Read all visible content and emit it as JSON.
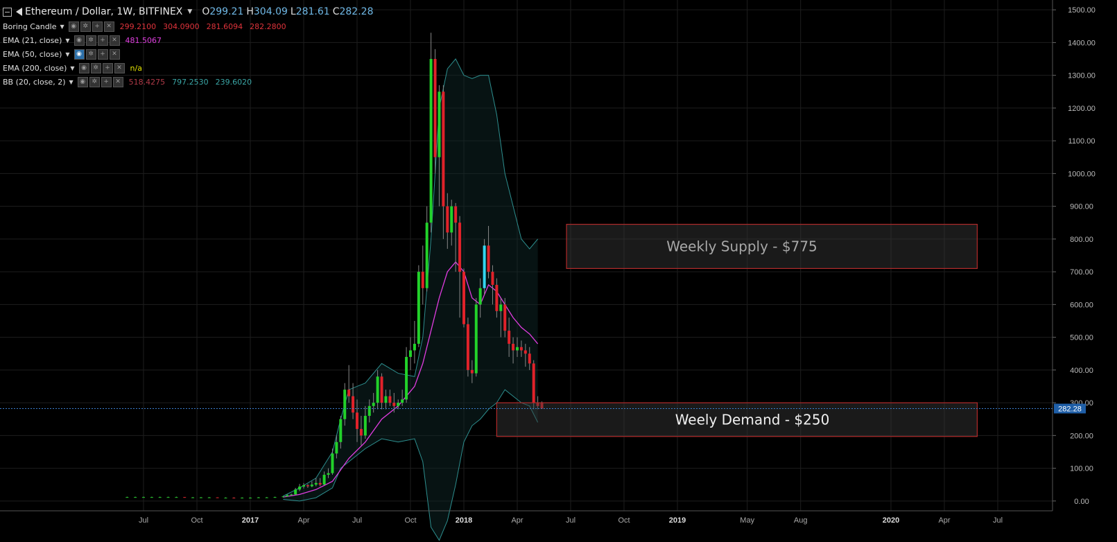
{
  "header": {
    "title": "Ethereum / Dollar, 1W, BITFINEX",
    "ohlc": [
      {
        "k": "O",
        "v": "299.21"
      },
      {
        "k": "H",
        "v": "304.09"
      },
      {
        "k": "L",
        "v": "281.61"
      },
      {
        "k": "C",
        "v": "282.28"
      }
    ]
  },
  "indicators": [
    {
      "name": "Boring Candle",
      "values": [
        "299.2100",
        "304.0900",
        "281.6094",
        "282.2800"
      ],
      "colors": [
        "#e0333b",
        "#e0333b",
        "#e0333b",
        "#e0333b"
      ]
    },
    {
      "name": "EMA (21, close)",
      "values": [
        "481.5067"
      ],
      "colors": [
        "#e040e0"
      ]
    },
    {
      "name": "EMA (50, close)",
      "values": [],
      "colors": [],
      "active": true
    },
    {
      "name": "EMA (200, close)",
      "values": [
        "n/a"
      ],
      "colors": [
        "#e6e600"
      ]
    },
    {
      "name": "BB (20, close, 2)",
      "values": [
        "518.4275",
        "797.2530",
        "239.6020"
      ],
      "colors": [
        "#b03a48",
        "#3aa6a6",
        "#3aa6a6"
      ]
    }
  ],
  "chart_data": {
    "type": "candlestick",
    "yaxis_ticks": [
      0,
      100,
      200,
      300,
      400,
      500,
      600,
      700,
      800,
      900,
      1000,
      1100,
      1200,
      1300,
      1400,
      1500
    ],
    "yaxis_tick_labels": [
      "0.00",
      "100.00",
      "200.00",
      "300.00",
      "400.00",
      "500.00",
      "600.00",
      "700.00",
      "800.00",
      "900.00",
      "1000.00",
      "1100.00",
      "1200.00",
      "1300.00",
      "1400.00",
      "1500.00"
    ],
    "ylim": [
      -30,
      1530
    ],
    "xaxis_ticks": [
      "Jul",
      "Oct",
      "2017",
      "Apr",
      "Jul",
      "Oct",
      "2018",
      "Apr",
      "Jul",
      "Oct",
      "2019",
      "May",
      "Aug",
      "2020",
      "Apr",
      "Jul"
    ],
    "xaxis_tick_weeks": [
      -26,
      -13,
      0,
      13,
      26,
      39,
      52,
      65,
      78,
      91,
      104,
      121,
      134,
      156,
      169,
      182
    ],
    "last_price": "282.28",
    "last_price_value": 282.28,
    "zones": [
      {
        "label": "Weekly Supply - $775",
        "y_low": 710,
        "y_high": 845,
        "x_start_week": 77,
        "x_end_week": 177
      },
      {
        "label": "Weely Demand - $250",
        "y_low": 197,
        "y_high": 300,
        "x_start_week": 60,
        "x_end_week": 177
      }
    ],
    "candles": [
      [
        -30,
        12,
        13,
        11,
        12
      ],
      [
        -28,
        12,
        13,
        11,
        12
      ],
      [
        -26,
        12,
        13,
        11,
        12
      ],
      [
        -24,
        12,
        13,
        11,
        12
      ],
      [
        -22,
        12,
        13,
        11,
        12
      ],
      [
        -20,
        12,
        13,
        11,
        12
      ],
      [
        -18,
        12,
        13,
        11,
        12
      ],
      [
        -16,
        12,
        12,
        10,
        11
      ],
      [
        -14,
        11,
        12,
        10,
        11
      ],
      [
        -12,
        11,
        12,
        10,
        11
      ],
      [
        -10,
        11,
        12,
        10,
        11
      ],
      [
        -8,
        11,
        11,
        9,
        10
      ],
      [
        -6,
        10,
        11,
        9,
        10
      ],
      [
        -4,
        10,
        11,
        8,
        9
      ],
      [
        -2,
        9,
        11,
        8,
        10
      ],
      [
        0,
        10,
        11,
        9,
        10
      ],
      [
        2,
        10,
        12,
        9,
        11
      ],
      [
        4,
        11,
        12,
        10,
        11
      ],
      [
        6,
        11,
        13,
        10,
        12
      ],
      [
        8,
        12,
        15,
        11,
        14
      ],
      [
        9,
        14,
        20,
        13,
        18
      ],
      [
        10,
        18,
        22,
        15,
        20
      ],
      [
        11,
        20,
        40,
        18,
        35
      ],
      [
        12,
        35,
        52,
        30,
        44
      ],
      [
        13,
        44,
        55,
        38,
        48
      ],
      [
        14,
        48,
        52,
        40,
        45
      ],
      [
        15,
        45,
        60,
        42,
        50
      ],
      [
        16,
        50,
        70,
        45,
        55
      ],
      [
        17,
        55,
        70,
        45,
        50
      ],
      [
        18,
        50,
        90,
        48,
        80
      ],
      [
        19,
        80,
        100,
        70,
        85
      ],
      [
        20,
        85,
        160,
        80,
        145
      ],
      [
        21,
        145,
        200,
        130,
        180
      ],
      [
        22,
        180,
        260,
        160,
        250
      ],
      [
        23,
        250,
        360,
        230,
        340
      ],
      [
        24,
        340,
        415,
        300,
        320
      ],
      [
        25,
        320,
        360,
        250,
        270
      ],
      [
        26,
        270,
        310,
        180,
        220
      ],
      [
        27,
        220,
        260,
        170,
        200
      ],
      [
        28,
        200,
        290,
        190,
        260
      ],
      [
        29,
        260,
        310,
        240,
        290
      ],
      [
        30,
        290,
        330,
        270,
        300
      ],
      [
        31,
        300,
        400,
        280,
        380
      ],
      [
        32,
        380,
        390,
        280,
        300
      ],
      [
        33,
        300,
        340,
        280,
        320
      ],
      [
        34,
        320,
        340,
        290,
        300
      ],
      [
        35,
        300,
        330,
        270,
        290
      ],
      [
        36,
        290,
        310,
        280,
        300
      ],
      [
        37,
        300,
        340,
        290,
        310
      ],
      [
        38,
        310,
        470,
        300,
        440
      ],
      [
        39,
        440,
        500,
        400,
        460
      ],
      [
        40,
        460,
        550,
        420,
        480
      ],
      [
        41,
        480,
        720,
        470,
        700
      ],
      [
        42,
        700,
        780,
        600,
        650
      ],
      [
        43,
        650,
        900,
        640,
        850
      ],
      [
        44,
        850,
        1430,
        820,
        1350
      ],
      [
        45,
        1350,
        1380,
        1000,
        1050
      ],
      [
        46,
        1050,
        1270,
        900,
        1250
      ],
      [
        47,
        1250,
        1270,
        800,
        900
      ],
      [
        48,
        900,
        940,
        770,
        820
      ],
      [
        49,
        820,
        920,
        780,
        900
      ],
      [
        50,
        900,
        910,
        700,
        850
      ],
      [
        51,
        850,
        870,
        560,
        700
      ],
      [
        52,
        700,
        710,
        530,
        540
      ],
      [
        53,
        540,
        560,
        380,
        400
      ],
      [
        54,
        400,
        430,
        360,
        390
      ],
      [
        55,
        390,
        620,
        380,
        600
      ],
      [
        56,
        600,
        680,
        560,
        650
      ],
      [
        57,
        650,
        800,
        630,
        780
      ],
      [
        58,
        780,
        840,
        680,
        700
      ],
      [
        59,
        700,
        720,
        600,
        660
      ],
      [
        60,
        660,
        680,
        560,
        580
      ],
      [
        61,
        580,
        620,
        500,
        600
      ],
      [
        62,
        600,
        620,
        500,
        520
      ],
      [
        63,
        520,
        560,
        440,
        480
      ],
      [
        64,
        480,
        500,
        420,
        460
      ],
      [
        65,
        460,
        500,
        440,
        470
      ],
      [
        66,
        470,
        490,
        440,
        460
      ],
      [
        67,
        460,
        480,
        410,
        450
      ],
      [
        68,
        450,
        470,
        400,
        420
      ],
      [
        69,
        420,
        430,
        280,
        300
      ],
      [
        70,
        300,
        320,
        280,
        290
      ],
      [
        71,
        299,
        304,
        281,
        282
      ]
    ],
    "ema21": [
      [
        8,
        12
      ],
      [
        12,
        20
      ],
      [
        16,
        35
      ],
      [
        20,
        60
      ],
      [
        24,
        130
      ],
      [
        28,
        180
      ],
      [
        32,
        250
      ],
      [
        36,
        290
      ],
      [
        40,
        350
      ],
      [
        42,
        420
      ],
      [
        44,
        520
      ],
      [
        46,
        620
      ],
      [
        48,
        700
      ],
      [
        50,
        730
      ],
      [
        52,
        700
      ],
      [
        54,
        620
      ],
      [
        56,
        600
      ],
      [
        58,
        660
      ],
      [
        60,
        640
      ],
      [
        62,
        600
      ],
      [
        64,
        560
      ],
      [
        66,
        530
      ],
      [
        68,
        510
      ],
      [
        70,
        480
      ]
    ],
    "bb_upper": [
      [
        8,
        15
      ],
      [
        12,
        40
      ],
      [
        16,
        70
      ],
      [
        20,
        150
      ],
      [
        22,
        250
      ],
      [
        24,
        340
      ],
      [
        28,
        360
      ],
      [
        32,
        420
      ],
      [
        36,
        390
      ],
      [
        40,
        380
      ],
      [
        42,
        500
      ],
      [
        44,
        800
      ],
      [
        46,
        1200
      ],
      [
        48,
        1320
      ],
      [
        50,
        1350
      ],
      [
        52,
        1300
      ],
      [
        54,
        1290
      ],
      [
        56,
        1300
      ],
      [
        58,
        1300
      ],
      [
        60,
        1180
      ],
      [
        62,
        1000
      ],
      [
        64,
        900
      ],
      [
        66,
        800
      ],
      [
        68,
        770
      ],
      [
        70,
        800
      ]
    ],
    "bb_lower": [
      [
        8,
        5
      ],
      [
        12,
        0
      ],
      [
        16,
        10
      ],
      [
        20,
        40
      ],
      [
        22,
        100
      ],
      [
        24,
        120
      ],
      [
        28,
        160
      ],
      [
        32,
        190
      ],
      [
        36,
        180
      ],
      [
        40,
        190
      ],
      [
        42,
        120
      ],
      [
        44,
        -80
      ],
      [
        46,
        -120
      ],
      [
        48,
        -60
      ],
      [
        50,
        50
      ],
      [
        52,
        180
      ],
      [
        54,
        230
      ],
      [
        56,
        250
      ],
      [
        58,
        280
      ],
      [
        60,
        300
      ],
      [
        62,
        340
      ],
      [
        64,
        320
      ],
      [
        66,
        300
      ],
      [
        68,
        290
      ],
      [
        70,
        240
      ]
    ]
  }
}
